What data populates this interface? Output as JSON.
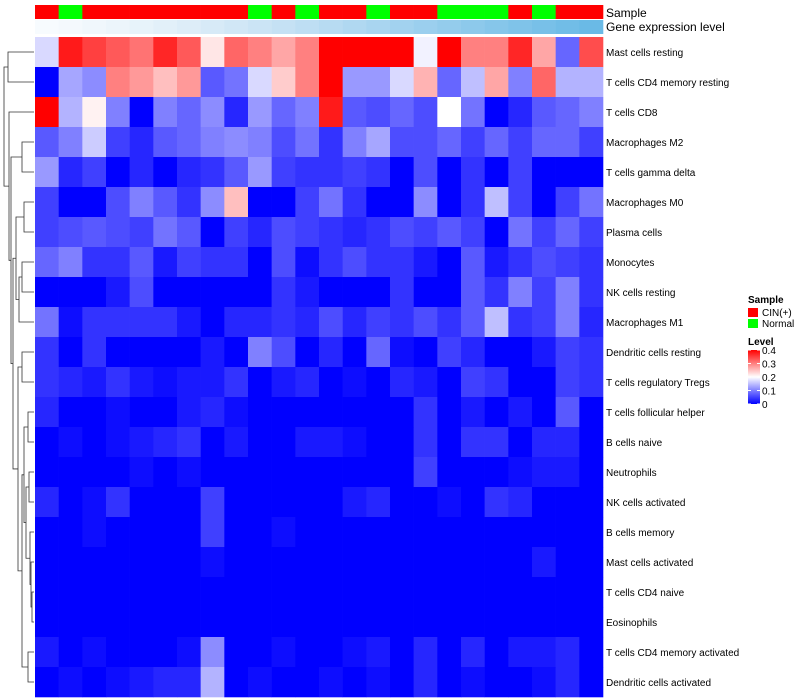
{
  "chart_data": {
    "type": "heatmap",
    "title": "",
    "annotation_labels": [
      "Sample",
      "Gene expression level"
    ],
    "sample_groups": [
      "CIN(+)",
      "Normal"
    ],
    "sample_colors": {
      "CIN(+)": "#ff0000",
      "Normal": "#00ff00"
    },
    "sample_annotation": [
      "CIN(+)",
      "Normal",
      "CIN(+)",
      "CIN(+)",
      "CIN(+)",
      "CIN(+)",
      "CIN(+)",
      "CIN(+)",
      "CIN(+)",
      "Normal",
      "CIN(+)",
      "Normal",
      "CIN(+)",
      "CIN(+)",
      "Normal",
      "CIN(+)",
      "CIN(+)",
      "Normal",
      "Normal",
      "Normal",
      "CIN(+)",
      "Normal",
      "CIN(+)",
      "CIN(+)"
    ],
    "gene_expression_colors": [
      "#f7fbfe",
      "#f4f9fd",
      "#f0f7fc",
      "#ecf5fb",
      "#e7f3fa",
      "#e2f0f9",
      "#ddedf8",
      "#d7eaf7",
      "#d1e7f6",
      "#cbe4f5",
      "#c5e1f4",
      "#bedef3",
      "#b7dbf2",
      "#b0d8f1",
      "#a9d5f0",
      "#a2d2ef",
      "#9bcfee",
      "#94ccec",
      "#8dc9eb",
      "#86c6ea",
      "#7fc3e9",
      "#78c0e8",
      "#71bde7",
      "#6abae6"
    ],
    "rows": [
      "Mast cells resting",
      "T cells CD4 memory resting",
      "T cells CD8",
      "Macrophages M2",
      "T cells gamma delta",
      "Macrophages M0",
      "Plasma cells",
      "Monocytes",
      "NK cells resting",
      "Macrophages M1",
      "Dendritic cells resting",
      "T cells regulatory  Tregs",
      "T cells follicular helper",
      "B cells naive",
      "Neutrophils",
      "NK cells activated",
      "B cells memory",
      "Mast cells activated",
      "T cells CD4 naive",
      "Eosinophils",
      "T cells CD4 memory activated",
      "Dendritic cells activated"
    ],
    "values": [
      [
        0.17,
        0.38,
        0.35,
        0.33,
        0.31,
        0.37,
        0.33,
        0.22,
        0.32,
        0.3,
        0.27,
        0.3,
        0.4,
        0.4,
        0.4,
        0.4,
        0.19,
        0.4,
        0.3,
        0.3,
        0.37,
        0.27,
        0.08,
        0.34
      ],
      [
        0.0,
        0.13,
        0.11,
        0.3,
        0.28,
        0.25,
        0.28,
        0.07,
        0.09,
        0.17,
        0.24,
        0.3,
        0.4,
        0.12,
        0.12,
        0.17,
        0.26,
        0.08,
        0.15,
        0.27,
        0.1,
        0.32,
        0.14,
        0.14
      ],
      [
        0.4,
        0.14,
        0.21,
        0.1,
        0.0,
        0.1,
        0.08,
        0.11,
        0.03,
        0.12,
        0.08,
        0.1,
        0.38,
        0.07,
        0.06,
        0.08,
        0.06,
        0.2,
        0.09,
        0.0,
        0.03,
        0.07,
        0.08,
        0.1
      ],
      [
        0.07,
        0.1,
        0.16,
        0.05,
        0.03,
        0.07,
        0.08,
        0.1,
        0.11,
        0.1,
        0.06,
        0.09,
        0.04,
        0.1,
        0.13,
        0.06,
        0.06,
        0.08,
        0.05,
        0.08,
        0.05,
        0.08,
        0.08,
        0.05
      ],
      [
        0.12,
        0.03,
        0.05,
        0.0,
        0.03,
        0.0,
        0.03,
        0.04,
        0.07,
        0.12,
        0.05,
        0.04,
        0.04,
        0.05,
        0.04,
        0.0,
        0.06,
        0.0,
        0.04,
        0.0,
        0.05,
        0.0,
        0.0,
        0.0
      ],
      [
        0.05,
        0.0,
        0.0,
        0.06,
        0.1,
        0.07,
        0.04,
        0.11,
        0.25,
        0.0,
        0.0,
        0.05,
        0.09,
        0.04,
        0.0,
        0.0,
        0.11,
        0.0,
        0.04,
        0.15,
        0.05,
        0.0,
        0.05,
        0.09
      ],
      [
        0.05,
        0.06,
        0.07,
        0.06,
        0.05,
        0.09,
        0.07,
        0.0,
        0.05,
        0.03,
        0.06,
        0.05,
        0.04,
        0.03,
        0.04,
        0.06,
        0.05,
        0.07,
        0.05,
        0.0,
        0.09,
        0.05,
        0.08,
        0.05
      ],
      [
        0.08,
        0.1,
        0.04,
        0.04,
        0.07,
        0.02,
        0.05,
        0.04,
        0.04,
        0.0,
        0.06,
        0.01,
        0.04,
        0.06,
        0.04,
        0.04,
        0.02,
        0.0,
        0.07,
        0.02,
        0.04,
        0.06,
        0.05,
        0.04
      ],
      [
        0.0,
        0.0,
        0.0,
        0.02,
        0.06,
        0.0,
        0.0,
        0.0,
        0.0,
        0.0,
        0.04,
        0.02,
        0.0,
        0.0,
        0.0,
        0.04,
        0.0,
        0.0,
        0.07,
        0.04,
        0.1,
        0.05,
        0.1,
        0.04
      ],
      [
        0.09,
        0.01,
        0.04,
        0.04,
        0.04,
        0.04,
        0.02,
        0.0,
        0.03,
        0.03,
        0.04,
        0.03,
        0.06,
        0.03,
        0.05,
        0.04,
        0.06,
        0.04,
        0.07,
        0.15,
        0.04,
        0.05,
        0.1,
        0.03
      ],
      [
        0.04,
        0.0,
        0.04,
        0.0,
        0.0,
        0.0,
        0.0,
        0.02,
        0.0,
        0.1,
        0.06,
        0.0,
        0.03,
        0.0,
        0.08,
        0.01,
        0.0,
        0.05,
        0.03,
        0.0,
        0.0,
        0.02,
        0.05,
        0.04
      ],
      [
        0.04,
        0.03,
        0.02,
        0.04,
        0.02,
        0.01,
        0.02,
        0.02,
        0.04,
        0.0,
        0.02,
        0.03,
        0.0,
        0.01,
        0.0,
        0.03,
        0.02,
        0.0,
        0.05,
        0.04,
        0.0,
        0.0,
        0.05,
        0.04
      ],
      [
        0.03,
        0.0,
        0.0,
        0.01,
        0.0,
        0.0,
        0.02,
        0.03,
        0.01,
        0.0,
        0.0,
        0.0,
        0.0,
        0.0,
        0.0,
        0.0,
        0.04,
        0.0,
        0.02,
        0.0,
        0.02,
        0.0,
        0.07,
        0.0
      ],
      [
        0.0,
        0.01,
        0.0,
        0.01,
        0.02,
        0.03,
        0.04,
        0.0,
        0.02,
        0.0,
        0.0,
        0.02,
        0.02,
        0.01,
        0.0,
        0.0,
        0.04,
        0.0,
        0.04,
        0.04,
        0.0,
        0.03,
        0.03,
        0.0
      ],
      [
        0.0,
        0.0,
        0.0,
        0.0,
        0.01,
        0.0,
        0.01,
        0.0,
        0.0,
        0.0,
        0.0,
        0.0,
        0.0,
        0.0,
        0.0,
        0.0,
        0.05,
        0.0,
        0.0,
        0.0,
        0.01,
        0.02,
        0.02,
        0.0
      ],
      [
        0.03,
        0.0,
        0.01,
        0.04,
        0.0,
        0.0,
        0.0,
        0.05,
        0.0,
        0.0,
        0.0,
        0.0,
        0.0,
        0.02,
        0.03,
        0.0,
        0.0,
        0.01,
        0.0,
        0.04,
        0.03,
        0.0,
        0.0,
        0.0
      ],
      [
        0.0,
        0.0,
        0.01,
        0.0,
        0.0,
        0.0,
        0.0,
        0.05,
        0.0,
        0.0,
        0.01,
        0.0,
        0.0,
        0.0,
        0.0,
        0.0,
        0.0,
        0.0,
        0.0,
        0.0,
        0.0,
        0.0,
        0.0,
        0.0
      ],
      [
        0.0,
        0.0,
        0.0,
        0.0,
        0.0,
        0.0,
        0.0,
        0.01,
        0.0,
        0.0,
        0.0,
        0.0,
        0.0,
        0.0,
        0.0,
        0.0,
        0.0,
        0.0,
        0.0,
        0.0,
        0.0,
        0.02,
        0.0,
        0.0
      ],
      [
        0.0,
        0.0,
        0.0,
        0.0,
        0.0,
        0.0,
        0.0,
        0.0,
        0.0,
        0.0,
        0.0,
        0.0,
        0.0,
        0.0,
        0.0,
        0.0,
        0.0,
        0.0,
        0.0,
        0.0,
        0.0,
        0.0,
        0.0,
        0.0
      ],
      [
        0.0,
        0.0,
        0.0,
        0.0,
        0.0,
        0.0,
        0.0,
        0.0,
        0.0,
        0.0,
        0.0,
        0.0,
        0.0,
        0.0,
        0.0,
        0.0,
        0.0,
        0.0,
        0.0,
        0.0,
        0.0,
        0.0,
        0.0,
        0.0
      ],
      [
        0.02,
        0.0,
        0.01,
        0.0,
        0.0,
        0.0,
        0.01,
        0.11,
        0.0,
        0.0,
        0.01,
        0.0,
        0.0,
        0.01,
        0.02,
        0.0,
        0.03,
        0.0,
        0.03,
        0.0,
        0.02,
        0.02,
        0.03,
        0.0
      ],
      [
        0.0,
        0.01,
        0.0,
        0.01,
        0.02,
        0.03,
        0.03,
        0.14,
        0.0,
        0.01,
        0.0,
        0.0,
        0.01,
        0.0,
        0.01,
        0.0,
        0.03,
        0.0,
        0.01,
        0.0,
        0.0,
        0.01,
        0.03,
        0.0
      ]
    ],
    "legend": {
      "position": "right",
      "sample_title": "Sample",
      "level_title": "Level",
      "level_range": [
        0,
        0.4
      ],
      "level_ticks": [
        "0.4",
        "0.3",
        "0.2",
        "0.1",
        "0"
      ],
      "level_colors": [
        "#0000ff",
        "#ffffff",
        "#ff0000"
      ]
    }
  }
}
